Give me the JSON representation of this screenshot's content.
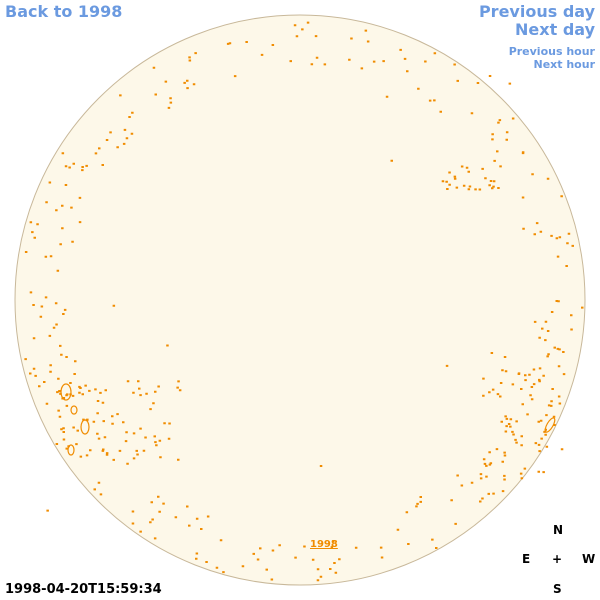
{
  "nav": {
    "back": "Back to 1998",
    "previous_day": "Previous day",
    "next_day": "Next day",
    "previous_hour": "Previous hour",
    "next_hour": "Next hour"
  },
  "disk": {
    "year_link": "1998"
  },
  "compass": {
    "north": "N",
    "east": "E",
    "center": "+",
    "west": "W",
    "south": "S"
  },
  "timestamp": "1998-04-20T15:59:34"
}
